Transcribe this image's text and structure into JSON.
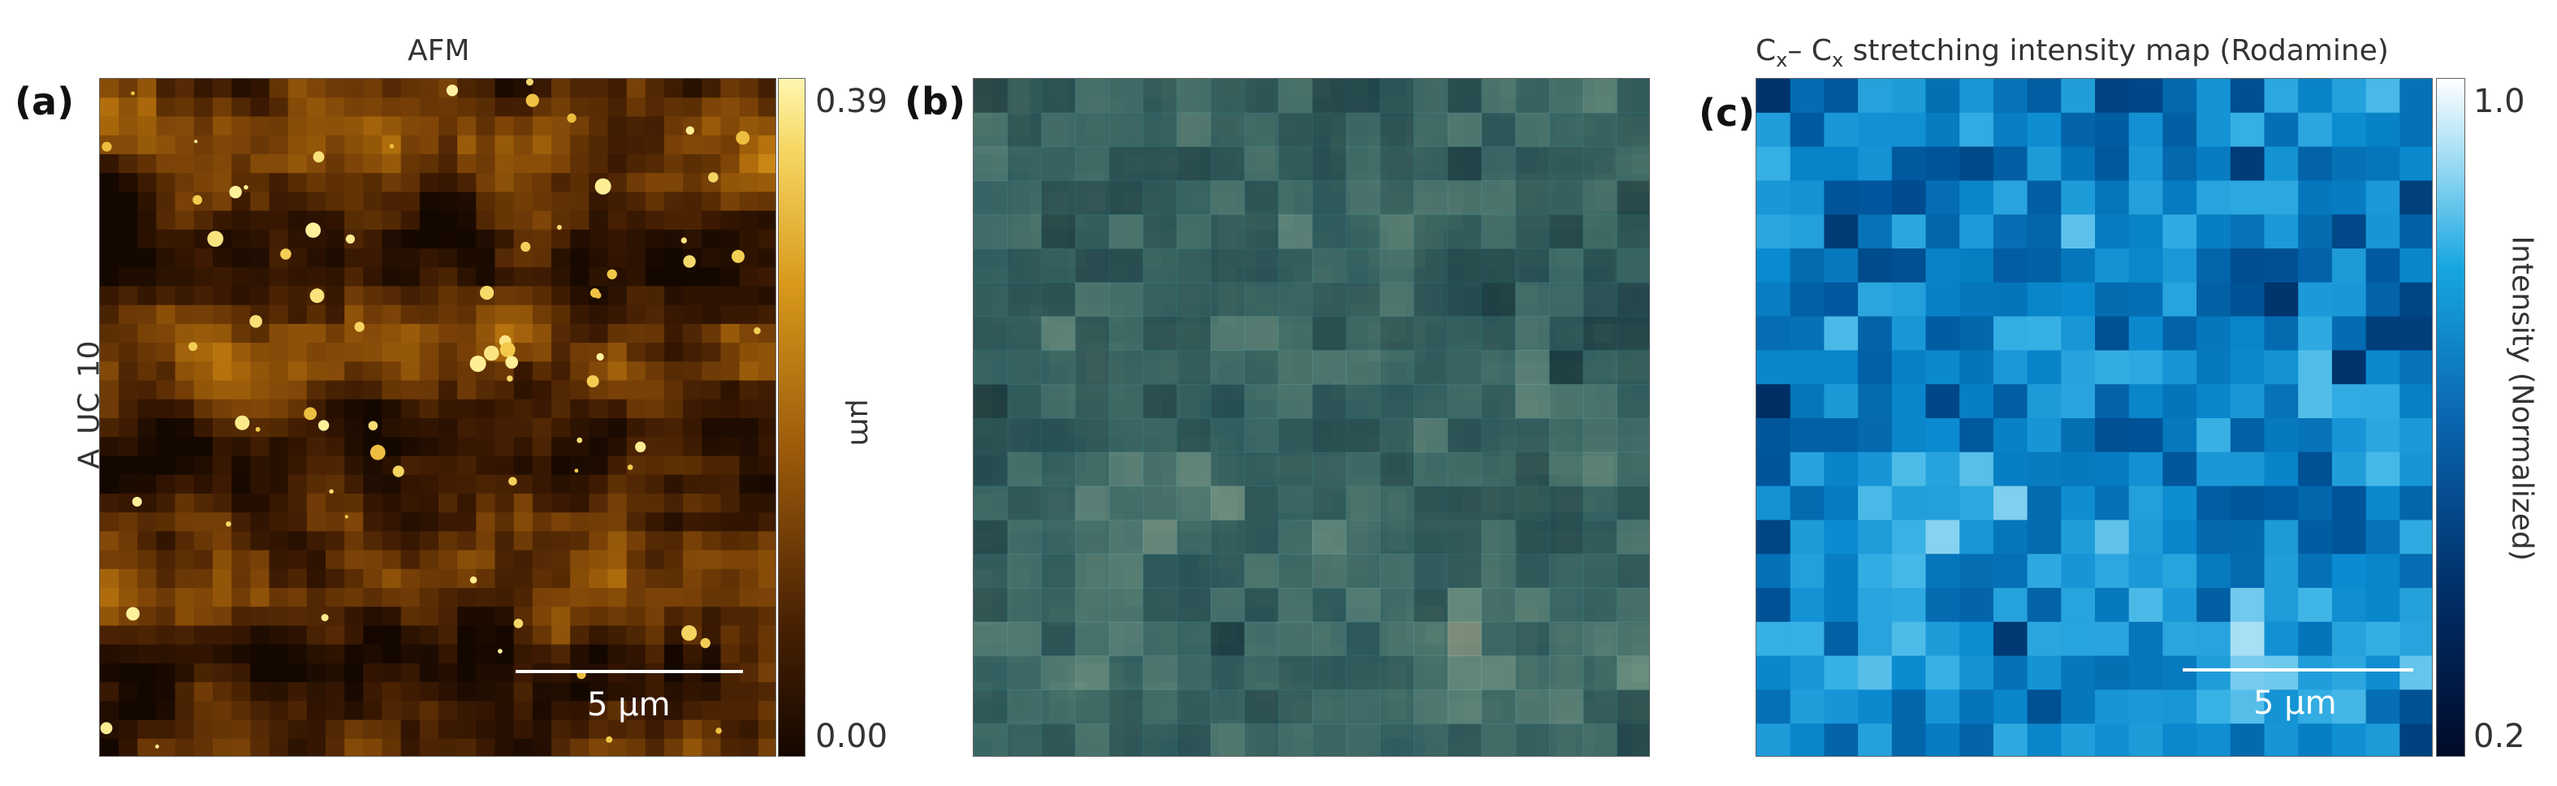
{
  "panels": {
    "a": {
      "label": "(a)",
      "title": "AFM",
      "row_label": "A_UC_10",
      "scale_bar": "5 µm",
      "colorbar": {
        "max": "0.39",
        "min": "0.00",
        "unit": "µm"
      },
      "colors": [
        "#140700",
        "#3d1a02",
        "#7a4207",
        "#b36f0c",
        "#d99a1c",
        "#f2c94a",
        "#fff3a0"
      ]
    },
    "b": {
      "label": "(b)"
    },
    "c": {
      "label": "(c)",
      "title_main": "C",
      "title_sub1": "x",
      "title_mid": "– C",
      "title_sub2": "x",
      "title_rest": " stretching intensity map (Rodamine)",
      "scale_bar": "5 µm",
      "colorbar": {
        "max": "1.0",
        "min": "0.2",
        "label": "Intensity (Normalized)"
      },
      "colors": [
        "#000a28",
        "#002a5e",
        "#00559a",
        "#0a8ad0",
        "#3cb4e6",
        "#9fdcf4",
        "#ffffff"
      ]
    }
  }
}
